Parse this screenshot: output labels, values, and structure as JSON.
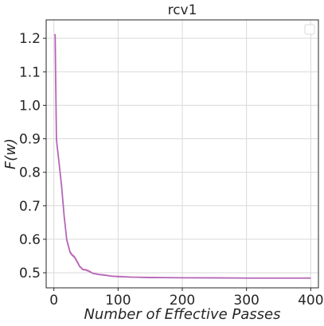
{
  "chart_data": {
    "type": "line",
    "title": "rcv1",
    "xlabel": "Number of Effective Passes",
    "ylabel": "F(w)",
    "xlim": [
      -12,
      412
    ],
    "ylim": [
      0.455,
      1.255
    ],
    "xticks": [
      0,
      100,
      200,
      300,
      400
    ],
    "yticks": [
      0.5,
      0.6,
      0.7,
      0.8,
      0.9,
      1.0,
      1.1,
      1.2
    ],
    "xtick_labels": [
      "0",
      "100",
      "200",
      "300",
      "400"
    ],
    "ytick_labels": [
      "0.5",
      "0.6",
      "0.7",
      "0.8",
      "0.9",
      "1.0",
      "1.1",
      "1.2"
    ],
    "grid": true,
    "legend": "top-right, empty",
    "series": [
      {
        "color": "#d45fb4",
        "x": [
          1,
          2,
          3,
          4,
          5,
          8,
          12,
          16,
          20,
          25,
          28,
          32,
          36,
          40,
          45,
          50,
          55,
          60,
          70,
          80,
          90,
          100,
          120,
          150,
          200,
          250,
          300,
          350,
          400
        ],
        "y": [
          1.212,
          1.21,
          1.05,
          0.9,
          0.88,
          0.83,
          0.76,
          0.67,
          0.6,
          0.563,
          0.555,
          0.548,
          0.535,
          0.52,
          0.51,
          0.509,
          0.505,
          0.499,
          0.495,
          0.493,
          0.49,
          0.489,
          0.487,
          0.486,
          0.485,
          0.485,
          0.484,
          0.484,
          0.484
        ]
      },
      {
        "color": "#9b6ab8",
        "x": [
          1,
          2,
          3,
          4,
          5,
          8,
          12,
          16,
          20,
          25,
          28,
          32,
          36,
          40,
          45,
          50,
          55,
          60,
          70,
          80,
          90,
          100,
          120,
          150,
          200,
          250,
          300,
          350,
          400
        ],
        "y": [
          1.212,
          1.208,
          1.045,
          0.895,
          0.878,
          0.826,
          0.755,
          0.665,
          0.596,
          0.56,
          0.552,
          0.545,
          0.532,
          0.518,
          0.509,
          0.507,
          0.503,
          0.498,
          0.494,
          0.492,
          0.489,
          0.488,
          0.487,
          0.485,
          0.485,
          0.484,
          0.484,
          0.484,
          0.484
        ]
      }
    ]
  }
}
